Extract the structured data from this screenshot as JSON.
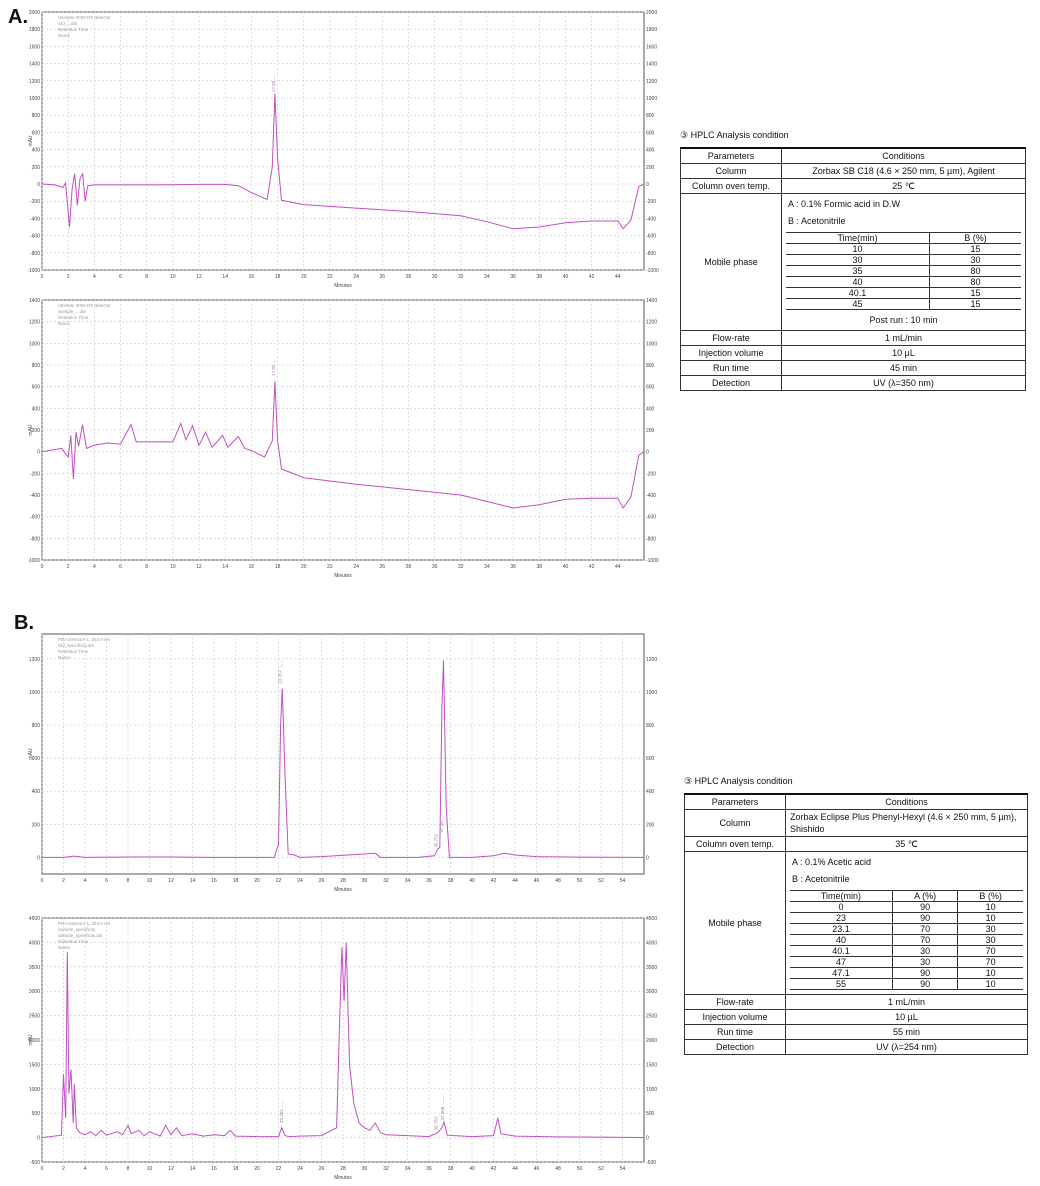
{
  "panels": {
    "a_label": "A.",
    "b_label": "B."
  },
  "colors": {
    "trace": "#c24ec4",
    "grid": "#c8c8c8",
    "axis": "#555555",
    "peak_label": "#9a7aa0"
  },
  "chart_data": [
    {
      "id": "A1",
      "type": "line",
      "xlabel": "Minutes",
      "ylabel": "mAU",
      "xlim": [
        0,
        46
      ],
      "ylim": [
        -1000,
        2000
      ],
      "x_ticks": [
        0,
        2,
        4,
        6,
        8,
        10,
        12,
        14,
        16,
        18,
        20,
        22,
        24,
        26,
        28,
        30,
        32,
        34,
        36,
        38,
        40,
        42,
        44
      ],
      "y_ticks": [
        -1000,
        -800,
        -600,
        -400,
        -200,
        0,
        200,
        400,
        600,
        800,
        1000,
        1200,
        1400,
        1600,
        1800,
        2000
      ],
      "grid": true,
      "legend_lines": [
        "Ultimate 3000 RS detector",
        "Std_...dat",
        "Retention Time",
        "Name"
      ],
      "peak_labels": [
        {
          "x": 17.8,
          "y": 1070,
          "text": "17.82 ..."
        }
      ],
      "series": [
        {
          "points": [
            [
              0,
              0
            ],
            [
              1,
              -10
            ],
            [
              1.6,
              -40
            ],
            [
              1.8,
              10
            ],
            [
              2.1,
              -500
            ],
            [
              2.3,
              -60
            ],
            [
              2.5,
              120
            ],
            [
              2.7,
              -250
            ],
            [
              2.9,
              60
            ],
            [
              3.1,
              120
            ],
            [
              3.3,
              -200
            ],
            [
              3.5,
              -20
            ],
            [
              4,
              -10
            ],
            [
              6,
              -10
            ],
            [
              8,
              -10
            ],
            [
              10,
              -8
            ],
            [
              12,
              -5
            ],
            [
              14,
              -5
            ],
            [
              15,
              -20
            ],
            [
              16,
              -100
            ],
            [
              17.2,
              -180
            ],
            [
              17.6,
              200
            ],
            [
              17.8,
              1050
            ],
            [
              18,
              300
            ],
            [
              18.3,
              -190
            ],
            [
              20,
              -240
            ],
            [
              24,
              -280
            ],
            [
              28,
              -320
            ],
            [
              32,
              -370
            ],
            [
              34,
              -440
            ],
            [
              36,
              -520
            ],
            [
              38,
              -500
            ],
            [
              40,
              -450
            ],
            [
              42,
              -430
            ],
            [
              44,
              -430
            ],
            [
              44.4,
              -520
            ],
            [
              45,
              -420
            ],
            [
              45.6,
              -30
            ],
            [
              46,
              0
            ]
          ]
        }
      ]
    },
    {
      "id": "A2",
      "type": "line",
      "xlabel": "Minutes",
      "ylabel": "mAU",
      "xlim": [
        0,
        46
      ],
      "ylim": [
        -1000,
        1400
      ],
      "x_ticks": [
        0,
        2,
        4,
        6,
        8,
        10,
        12,
        14,
        16,
        18,
        20,
        22,
        24,
        26,
        28,
        30,
        32,
        34,
        36,
        38,
        40,
        42,
        44
      ],
      "y_ticks": [
        -1000,
        -800,
        -600,
        -400,
        -200,
        0,
        200,
        400,
        600,
        800,
        1000,
        1200,
        1400
      ],
      "grid": true,
      "legend_lines": [
        "Ultimate 3000 RS detector",
        "Sample_...dat",
        "Retention Time",
        "Name"
      ],
      "peak_labels": [
        {
          "x": 17.8,
          "y": 700,
          "text": "17.82 ..."
        }
      ],
      "series": [
        {
          "points": [
            [
              0,
              0
            ],
            [
              1.5,
              30
            ],
            [
              2,
              -50
            ],
            [
              2.2,
              150
            ],
            [
              2.4,
              -250
            ],
            [
              2.6,
              180
            ],
            [
              2.8,
              50
            ],
            [
              3.1,
              250
            ],
            [
              3.4,
              30
            ],
            [
              4,
              60
            ],
            [
              5,
              80
            ],
            [
              6,
              70
            ],
            [
              6.8,
              250
            ],
            [
              7.2,
              90
            ],
            [
              8,
              90
            ],
            [
              9,
              90
            ],
            [
              10,
              90
            ],
            [
              10.6,
              260
            ],
            [
              11,
              110
            ],
            [
              11.5,
              240
            ],
            [
              12,
              60
            ],
            [
              12.5,
              180
            ],
            [
              13,
              40
            ],
            [
              13.8,
              150
            ],
            [
              14.2,
              40
            ],
            [
              15,
              140
            ],
            [
              15.5,
              30
            ],
            [
              16.2,
              0
            ],
            [
              17,
              -50
            ],
            [
              17.6,
              100
            ],
            [
              17.8,
              650
            ],
            [
              18,
              100
            ],
            [
              18.3,
              -160
            ],
            [
              20,
              -240
            ],
            [
              24,
              -300
            ],
            [
              28,
              -350
            ],
            [
              32,
              -400
            ],
            [
              34,
              -460
            ],
            [
              36,
              -520
            ],
            [
              38,
              -490
            ],
            [
              40,
              -440
            ],
            [
              42,
              -430
            ],
            [
              44,
              -430
            ],
            [
              44.4,
              -520
            ],
            [
              45,
              -420
            ],
            [
              45.6,
              -30
            ],
            [
              46,
              0
            ]
          ]
        }
      ]
    },
    {
      "id": "B1",
      "type": "line",
      "xlabel": "Minutes",
      "ylabel": "mAU",
      "xlim": [
        0,
        56
      ],
      "ylim": [
        -100,
        1350
      ],
      "x_ticks": [
        0,
        2,
        4,
        6,
        8,
        10,
        12,
        14,
        16,
        18,
        20,
        22,
        24,
        26,
        28,
        30,
        32,
        34,
        36,
        38,
        40,
        42,
        44,
        46,
        48,
        50,
        52,
        54
      ],
      "y_ticks": [
        0,
        200,
        400,
        600,
        800,
        1000,
        1200
      ],
      "grid": true,
      "legend_lines": [
        "PDA Detector 1, 254.0 nm",
        "Std_specificity.dat",
        "Retention Time",
        "Name"
      ],
      "peak_labels": [
        {
          "x": 22.3,
          "y": 1050,
          "text": "22.357 ......"
        },
        {
          "x": 36.8,
          "y": 60,
          "text": "36.752"
        },
        {
          "x": 37.3,
          "y": 150,
          "text": "37.30..."
        }
      ],
      "series": [
        {
          "points": [
            [
              0,
              0
            ],
            [
              2,
              0
            ],
            [
              3,
              8
            ],
            [
              4,
              0
            ],
            [
              8,
              3
            ],
            [
              12,
              3
            ],
            [
              16,
              0
            ],
            [
              20,
              0
            ],
            [
              21.6,
              0
            ],
            [
              22,
              80
            ],
            [
              22.2,
              800
            ],
            [
              22.35,
              1020
            ],
            [
              22.6,
              500
            ],
            [
              22.9,
              20
            ],
            [
              23.5,
              15
            ],
            [
              24,
              0
            ],
            [
              26,
              5
            ],
            [
              31,
              25
            ],
            [
              31.5,
              0
            ],
            [
              35,
              0
            ],
            [
              36.5,
              10
            ],
            [
              36.8,
              50
            ],
            [
              37,
              60
            ],
            [
              37.2,
              900
            ],
            [
              37.35,
              1190
            ],
            [
              37.6,
              300
            ],
            [
              37.9,
              0
            ],
            [
              40,
              0
            ],
            [
              42,
              10
            ],
            [
              43,
              25
            ],
            [
              44,
              15
            ],
            [
              46,
              5
            ],
            [
              50,
              2
            ],
            [
              56,
              0
            ]
          ]
        }
      ]
    },
    {
      "id": "B2",
      "type": "line",
      "xlabel": "Minutes",
      "ylabel": "mAU",
      "xlim": [
        0,
        56
      ],
      "ylim": [
        -500,
        4500
      ],
      "x_ticks": [
        0,
        2,
        4,
        6,
        8,
        10,
        12,
        14,
        16,
        18,
        20,
        22,
        24,
        26,
        28,
        30,
        32,
        34,
        36,
        38,
        40,
        42,
        44,
        46,
        48,
        50,
        52,
        54
      ],
      "y_ticks": [
        -500,
        0,
        500,
        1000,
        1500,
        2000,
        2500,
        3000,
        3500,
        4000,
        4500
      ],
      "grid": true,
      "legend_lines": [
        "PDA Detector 1, 254.0 nm",
        "Sample_specificity",
        "Sample_specificity.dat",
        "Retention Time",
        "Name"
      ],
      "peak_labels": [
        {
          "x": 22.4,
          "y": 300,
          "text": "22.352 ......"
        },
        {
          "x": 36.8,
          "y": 150,
          "text": "36.752"
        },
        {
          "x": 37.4,
          "y": 350,
          "text": "37.308 ........."
        }
      ],
      "series": [
        {
          "points": [
            [
              0,
              0
            ],
            [
              1.8,
              50
            ],
            [
              2,
              1300
            ],
            [
              2.2,
              400
            ],
            [
              2.35,
              3800
            ],
            [
              2.5,
              900
            ],
            [
              2.7,
              1400
            ],
            [
              2.9,
              300
            ],
            [
              3,
              1100
            ],
            [
              3.2,
              200
            ],
            [
              3.5,
              100
            ],
            [
              4,
              60
            ],
            [
              4.5,
              120
            ],
            [
              5,
              40
            ],
            [
              5.5,
              150
            ],
            [
              6,
              50
            ],
            [
              7,
              120
            ],
            [
              7.5,
              60
            ],
            [
              8,
              250
            ],
            [
              8.3,
              80
            ],
            [
              9,
              150
            ],
            [
              9.5,
              40
            ],
            [
              10,
              120
            ],
            [
              11,
              30
            ],
            [
              11.5,
              250
            ],
            [
              12,
              60
            ],
            [
              12.5,
              200
            ],
            [
              13,
              40
            ],
            [
              14,
              80
            ],
            [
              15,
              30
            ],
            [
              16,
              60
            ],
            [
              17,
              40
            ],
            [
              17.5,
              150
            ],
            [
              18,
              30
            ],
            [
              20,
              20
            ],
            [
              22,
              20
            ],
            [
              22.3,
              200
            ],
            [
              22.6,
              40
            ],
            [
              23,
              20
            ],
            [
              24,
              30
            ],
            [
              26,
              40
            ],
            [
              27.4,
              200
            ],
            [
              27.7,
              2500
            ],
            [
              27.9,
              3900
            ],
            [
              28.1,
              2800
            ],
            [
              28.3,
              4000
            ],
            [
              28.6,
              1500
            ],
            [
              29,
              700
            ],
            [
              29.5,
              300
            ],
            [
              30,
              200
            ],
            [
              30.5,
              150
            ],
            [
              31,
              300
            ],
            [
              31.5,
              100
            ],
            [
              32,
              60
            ],
            [
              34,
              40
            ],
            [
              36,
              20
            ],
            [
              36.8,
              100
            ],
            [
              37.2,
              200
            ],
            [
              37.4,
              320
            ],
            [
              37.7,
              50
            ],
            [
              40,
              20
            ],
            [
              42,
              40
            ],
            [
              42.4,
              400
            ],
            [
              42.7,
              80
            ],
            [
              44,
              30
            ],
            [
              48,
              15
            ],
            [
              52,
              10
            ],
            [
              56,
              0
            ]
          ]
        }
      ]
    }
  ],
  "cond_a": {
    "title": "③ HPLC Analysis condition",
    "h_params": "Parameters",
    "h_cond": "Conditions",
    "column_label": "Column",
    "column_value": "Zorbax SB C18 (4.6 × 250 mm, 5 µm), Agilent",
    "oven_label": "Column oven temp.",
    "oven_value": "25 ℃",
    "mobile_label": "Mobile phase",
    "mobile_a": "A : 0.1% Formic acid in D.W",
    "mobile_b": "B : Acetonitrile",
    "grad_h_time": "Time(min)",
    "grad_h_b": "B (%)",
    "grad_rows": [
      [
        "10",
        "15"
      ],
      [
        "30",
        "30"
      ],
      [
        "35",
        "80"
      ],
      [
        "40",
        "80"
      ],
      [
        "40.1",
        "15"
      ],
      [
        "45",
        "15"
      ]
    ],
    "post_run": "Post run : 10 min",
    "flow_label": "Flow-rate",
    "flow_value": "1 mL/min",
    "inj_label": "Injection volume",
    "inj_value": "10 µL",
    "run_label": "Run time",
    "run_value": "45 min",
    "det_label": "Detection",
    "det_value": "UV (λ=350 nm)"
  },
  "cond_b": {
    "title": "③ HPLC Analysis condition",
    "h_params": "Parameters",
    "h_cond": "Conditions",
    "column_label": "Column",
    "column_value": "Zorbax Eclipse Plus Phenyl-Hexyl (4.6 × 250 mm, 5 µm), Shishido",
    "oven_label": "Column oven temp.",
    "oven_value": "35 ℃",
    "mobile_label": "Mobile phase",
    "mobile_a": "A : 0.1% Acetic acid",
    "mobile_b": "B : Acetonitrile",
    "grad_h_time": "Time(min)",
    "grad_h_a": "A (%)",
    "grad_h_b": "B (%)",
    "grad_rows": [
      [
        "0",
        "90",
        "10"
      ],
      [
        "23",
        "90",
        "10"
      ],
      [
        "23.1",
        "70",
        "30"
      ],
      [
        "40",
        "70",
        "30"
      ],
      [
        "40.1",
        "30",
        "70"
      ],
      [
        "47",
        "30",
        "70"
      ],
      [
        "47.1",
        "90",
        "10"
      ],
      [
        "55",
        "90",
        "10"
      ]
    ],
    "flow_label": "Flow-rate",
    "flow_value": "1 mL/min",
    "inj_label": "Injection volume",
    "inj_value": "10 µL",
    "run_label": "Run time",
    "run_value": "55 min",
    "det_label": "Detection",
    "det_value": "UV (λ=254 nm)"
  }
}
